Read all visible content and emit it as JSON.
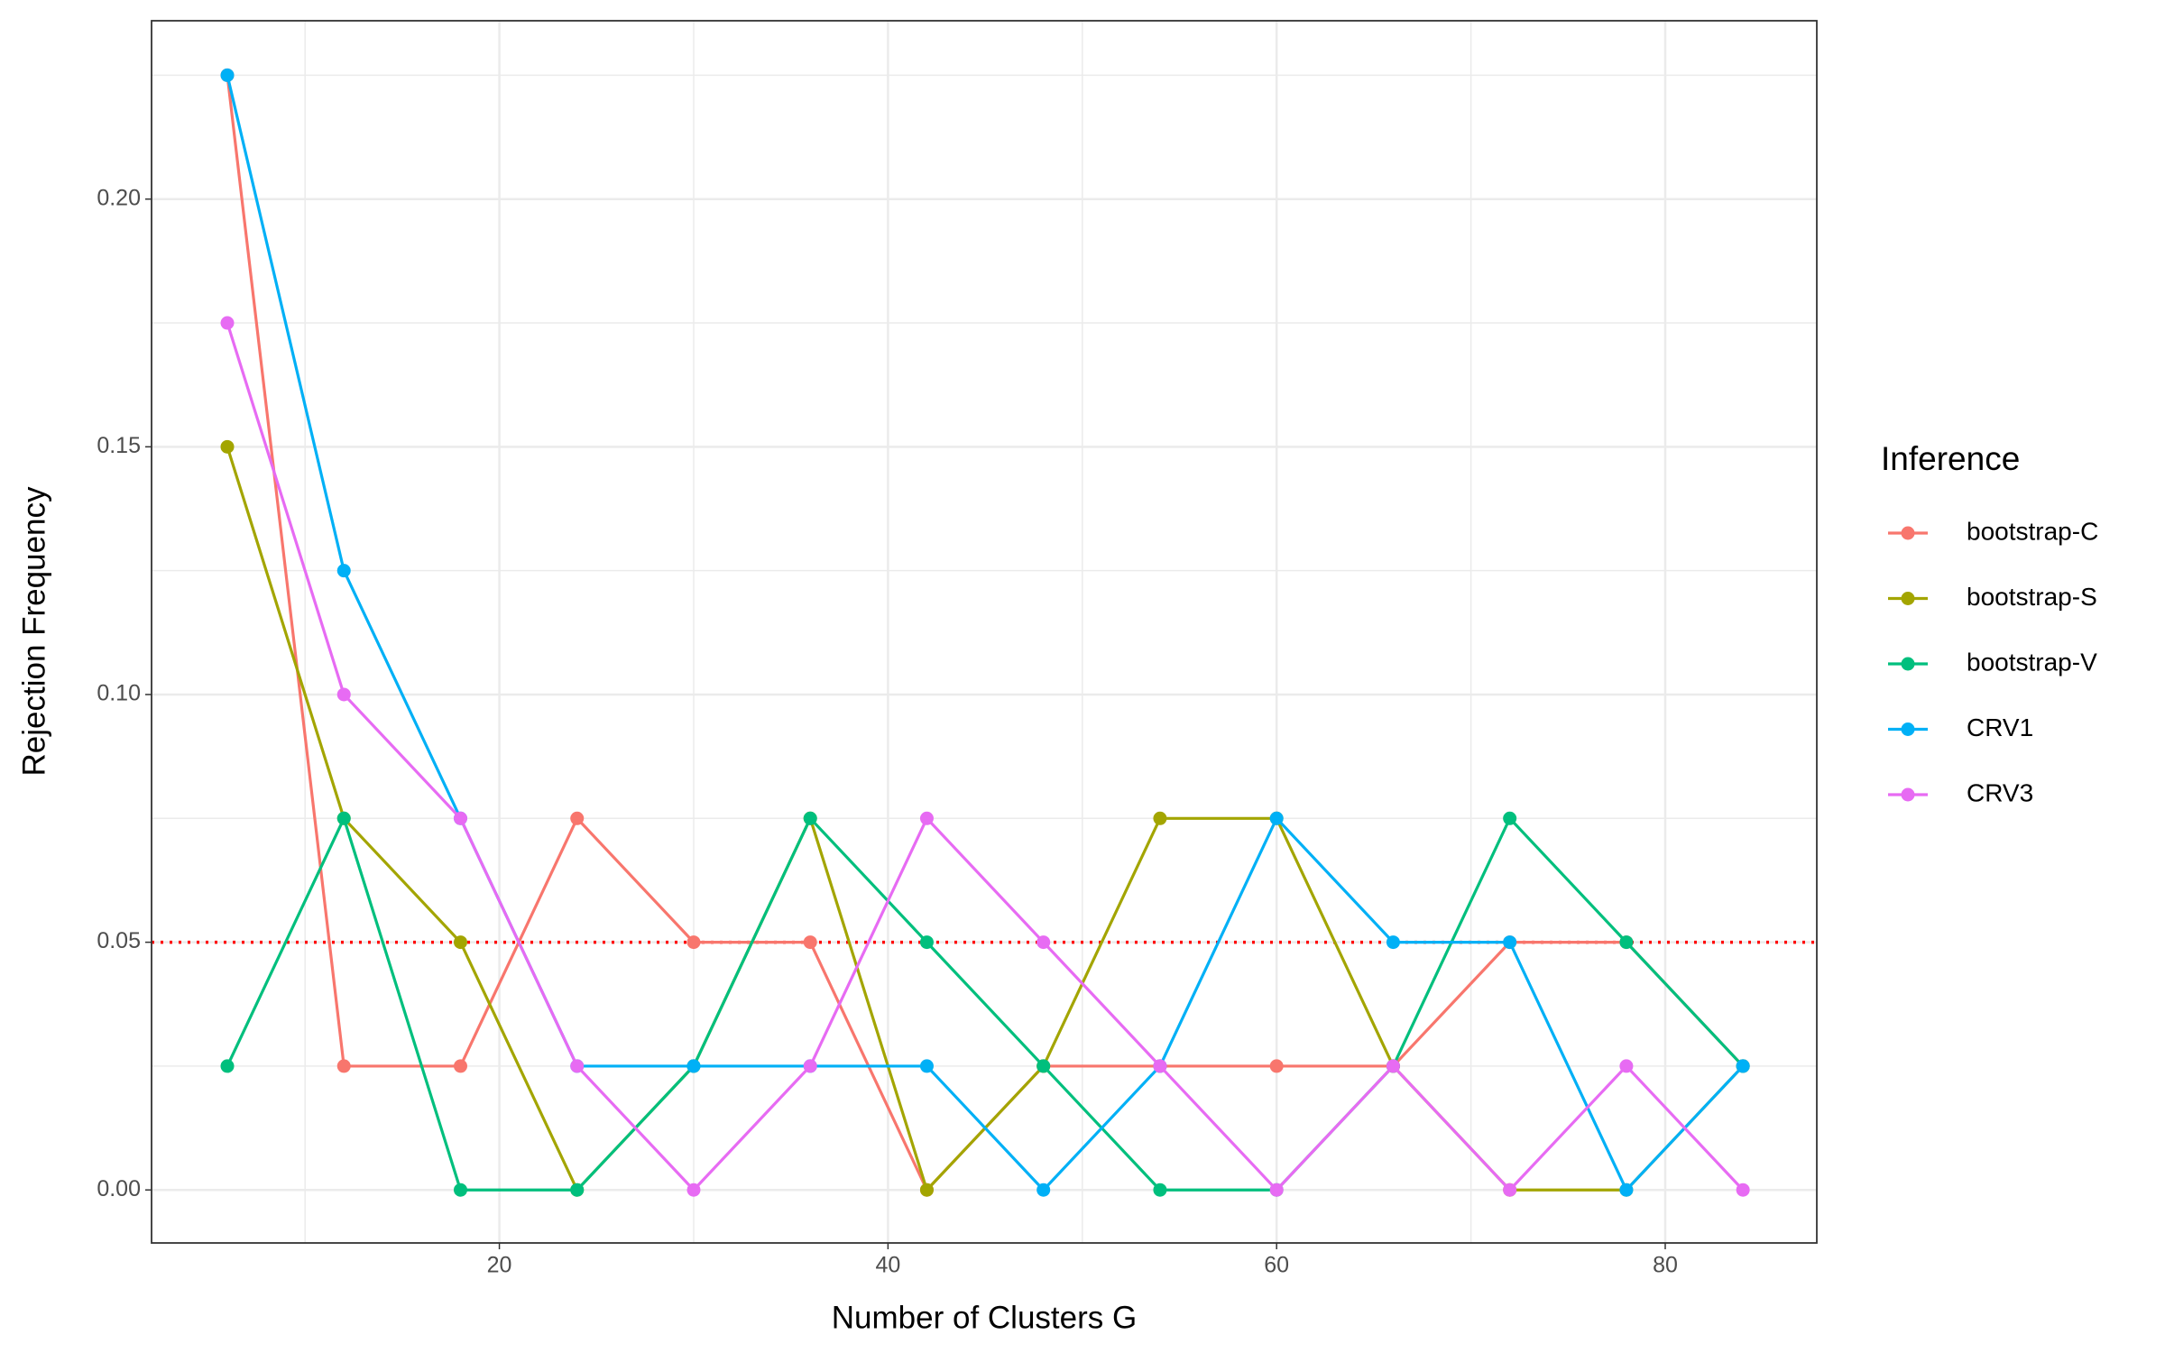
{
  "chart_data": {
    "type": "line",
    "x_label": "Number of Clusters G",
    "y_label": "Rejection Frequency",
    "legend_title": "Inference",
    "legend_position": "right",
    "grid": true,
    "x": [
      6,
      12,
      18,
      24,
      30,
      36,
      42,
      48,
      54,
      60,
      66,
      72,
      78,
      84
    ],
    "series": [
      {
        "name": "bootstrap-C",
        "color": "#F8766D",
        "values": [
          0.225,
          0.025,
          0.025,
          0.075,
          0.05,
          0.05,
          0,
          0.025,
          0.025,
          0.025,
          0.025,
          0.05,
          0.05,
          0.025
        ]
      },
      {
        "name": "bootstrap-S",
        "color": "#A3A500",
        "values": [
          0.15,
          0.075,
          0.05,
          0,
          0.025,
          0.075,
          0,
          0.025,
          0.075,
          0.075,
          0.025,
          0,
          0,
          0.025
        ]
      },
      {
        "name": "bootstrap-V",
        "color": "#00BF7D",
        "values": [
          0.025,
          0.075,
          0,
          0,
          0.025,
          0.075,
          0.05,
          0.025,
          0,
          0,
          0.025,
          0.075,
          0.05,
          0.025
        ]
      },
      {
        "name": "CRV1",
        "color": "#00B0F6",
        "values": [
          0.225,
          0.125,
          0.075,
          0.025,
          0.025,
          0.025,
          0.025,
          0,
          0.025,
          0.075,
          0.05,
          0.05,
          0,
          0.025
        ]
      },
      {
        "name": "CRV3",
        "color": "#E76BF3",
        "values": [
          0.175,
          0.1,
          0.075,
          0.025,
          0,
          0.025,
          0.075,
          0.05,
          0.025,
          0,
          0.025,
          0,
          0.025,
          0
        ]
      }
    ],
    "hline": {
      "value": 0.05,
      "color": "#FF0000",
      "style": "dotted"
    },
    "xlim": [
      2.1,
      87.8
    ],
    "xticks": [
      20,
      40,
      60,
      80
    ],
    "ylim": [
      -0.0107,
      0.236
    ],
    "yticks": [
      {
        "value": 0,
        "label": "0.00"
      },
      {
        "value": 0.05,
        "label": "0.05"
      },
      {
        "value": 0.1,
        "label": "0.10"
      },
      {
        "value": 0.15,
        "label": "0.15"
      },
      {
        "value": 0.2,
        "label": "0.20"
      }
    ]
  }
}
